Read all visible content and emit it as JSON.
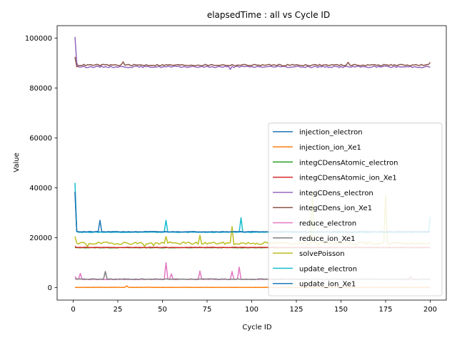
{
  "chart_data": {
    "type": "line",
    "title": "elapsedTime : all vs Cycle ID",
    "xlabel": "Cycle ID",
    "ylabel": "Value",
    "xlim": [
      -9,
      209
    ],
    "ylim": [
      -5000,
      105000
    ],
    "xticks": [
      0,
      25,
      50,
      75,
      100,
      125,
      150,
      175,
      200
    ],
    "yticks": [
      0,
      20000,
      40000,
      60000,
      80000,
      100000
    ],
    "xtick_labels": [
      "0",
      "25",
      "50",
      "75",
      "100",
      "125",
      "150",
      "175",
      "200"
    ],
    "ytick_labels": [
      "0",
      "20000",
      "40000",
      "60000",
      "80000",
      "100000"
    ],
    "grid": false,
    "legend_position": "lower-right",
    "x_range": [
      1,
      200
    ],
    "series": [
      {
        "name": "injection_electron",
        "color": "#1f77b4",
        "baseline": 22300,
        "noise": 150,
        "seed": 11,
        "points": [
          [
            1,
            38000
          ],
          [
            2,
            22500
          ],
          [
            200,
            28000
          ]
        ]
      },
      {
        "name": "injection_ion_Xe1",
        "color": "#ff7f0e",
        "baseline": 100,
        "noise": 40,
        "seed": 12,
        "points": [
          [
            30,
            700
          ]
        ]
      },
      {
        "name": "integCDensAtomic_electron",
        "color": "#2ca02c",
        "baseline": 16000,
        "noise": 60,
        "seed": 13,
        "points": []
      },
      {
        "name": "integCDensAtomic_ion_Xe1",
        "color": "#d62728",
        "baseline": 16100,
        "noise": 70,
        "seed": 14,
        "points": [
          [
            1,
            16500
          ]
        ]
      },
      {
        "name": "integCDens_electron",
        "color": "#9467bd",
        "baseline": 88500,
        "noise": 300,
        "seed": 15,
        "points": [
          [
            1,
            100500
          ],
          [
            2,
            90000
          ],
          [
            3,
            88500
          ],
          [
            88,
            87500
          ]
        ]
      },
      {
        "name": "integCDens_ion_Xe1",
        "color": "#8c564b",
        "baseline": 89200,
        "noise": 300,
        "seed": 16,
        "points": [
          [
            1,
            92500
          ],
          [
            2,
            88500
          ],
          [
            28,
            90500
          ],
          [
            154,
            90300
          ],
          [
            200,
            90300
          ]
        ]
      },
      {
        "name": "reduce_electron",
        "color": "#e377c2",
        "baseline": 3300,
        "noise": 120,
        "seed": 17,
        "points": [
          [
            1,
            4500
          ],
          [
            2,
            3300
          ],
          [
            4,
            5700
          ],
          [
            5,
            3300
          ],
          [
            52,
            10000
          ],
          [
            53,
            3500
          ],
          [
            55,
            5500
          ],
          [
            56,
            3300
          ],
          [
            71,
            6700
          ],
          [
            72,
            3300
          ],
          [
            89,
            6500
          ],
          [
            90,
            3300
          ],
          [
            93,
            8200
          ],
          [
            94,
            3300
          ]
        ]
      },
      {
        "name": "reduce_ion_Xe1",
        "color": "#7f7f7f",
        "baseline": 3400,
        "noise": 120,
        "seed": 18,
        "points": [
          [
            18,
            6500
          ],
          [
            19,
            3400
          ],
          [
            189,
            4500
          ],
          [
            190,
            3400
          ]
        ]
      },
      {
        "name": "solvePoisson",
        "color": "#bcbd22",
        "baseline": 17800,
        "noise": 500,
        "seed": 19,
        "points": [
          [
            1,
            20500
          ],
          [
            3,
            17500
          ],
          [
            8,
            16500
          ],
          [
            40,
            16500
          ],
          [
            45,
            16800
          ],
          [
            52,
            20500
          ],
          [
            53,
            17800
          ],
          [
            71,
            21000
          ],
          [
            72,
            17500
          ],
          [
            89,
            24500
          ],
          [
            90,
            17200
          ],
          [
            134,
            38000
          ],
          [
            135,
            18000
          ],
          [
            175,
            37000
          ],
          [
            176,
            18000
          ],
          [
            200,
            17800
          ]
        ]
      },
      {
        "name": "update_electron",
        "color": "#17becf",
        "baseline": 22200,
        "noise": 100,
        "seed": 20,
        "points": [
          [
            1,
            42000
          ],
          [
            2,
            22500
          ],
          [
            52,
            27000
          ],
          [
            53,
            22200
          ],
          [
            94,
            28000
          ],
          [
            95,
            22200
          ],
          [
            200,
            28500
          ]
        ]
      },
      {
        "name": "update_ion_Xe1",
        "color": "#1f77b4",
        "baseline": 22400,
        "noise": 120,
        "seed": 21,
        "points": [
          [
            1,
            38500
          ],
          [
            2,
            22500
          ],
          [
            15,
            27000
          ],
          [
            16,
            22400
          ]
        ]
      }
    ]
  }
}
